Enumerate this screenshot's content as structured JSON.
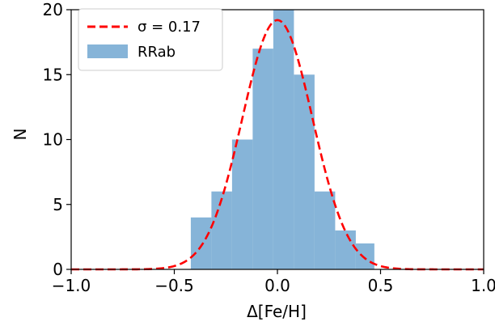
{
  "chart_data": {
    "type": "histogram",
    "xlabel": "Δ[Fe/H]",
    "ylabel": "N",
    "xlim": [
      -1.0,
      1.0
    ],
    "ylim": [
      0,
      20
    ],
    "xticks": [
      "−1.0",
      "−0.5",
      "0.0",
      "0.5",
      "1.0"
    ],
    "xtick_values": [
      -1.0,
      -0.5,
      0.0,
      0.5,
      1.0
    ],
    "yticks": [
      "0",
      "5",
      "10",
      "15",
      "20"
    ],
    "ytick_values": [
      0,
      5,
      10,
      15,
      20
    ],
    "grid": false,
    "legend_position": "top-left",
    "histogram": {
      "name": "RRab",
      "color": "#86b4d8",
      "bins": [
        {
          "x0": -0.42,
          "x1": -0.32,
          "count": 4
        },
        {
          "x0": -0.32,
          "x1": -0.22,
          "count": 6
        },
        {
          "x0": -0.22,
          "x1": -0.12,
          "count": 10
        },
        {
          "x0": -0.12,
          "x1": -0.02,
          "count": 17
        },
        {
          "x0": -0.02,
          "x1": 0.08,
          "count": 20
        },
        {
          "x0": 0.08,
          "x1": 0.18,
          "count": 15
        },
        {
          "x0": 0.18,
          "x1": 0.28,
          "count": 6
        },
        {
          "x0": 0.28,
          "x1": 0.38,
          "count": 3
        },
        {
          "x0": 0.38,
          "x1": 0.47,
          "count": 2
        }
      ]
    },
    "curve": {
      "name": "σ = 0.17",
      "color": "#ff0000",
      "style": "dashed",
      "mu": 0.0,
      "sigma": 0.17,
      "amplitude": 19.2
    },
    "legend": {
      "curve_label": "σ = 0.17",
      "hist_label": "RRab"
    }
  }
}
